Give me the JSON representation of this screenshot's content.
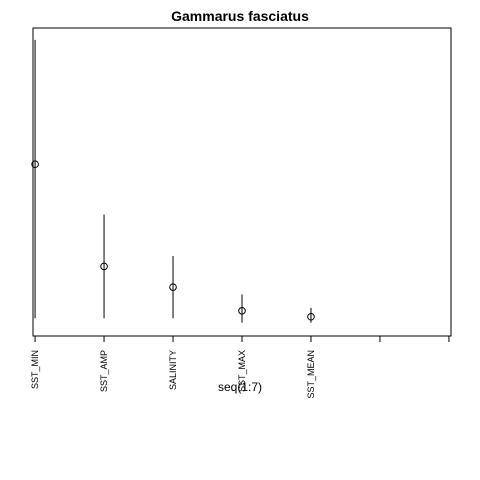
{
  "chart_data": {
    "type": "scatter",
    "title": "Gammarus fasciatus",
    "xlabel": "seq(1:7)",
    "ylabel": "",
    "x_positions": [
      1,
      2,
      3,
      4,
      5,
      6,
      7
    ],
    "categories": [
      "SST_MIN",
      "SST_AMP",
      "SALINITY",
      "SST_MAX",
      "SST_MEAN",
      "",
      ""
    ],
    "points": [
      {
        "x": 1,
        "y": 0.58,
        "low": 0.06,
        "high": 1.0
      },
      {
        "x": 2,
        "y": 0.235,
        "low": 0.06,
        "high": 0.41
      },
      {
        "x": 3,
        "y": 0.165,
        "low": 0.06,
        "high": 0.27
      },
      {
        "x": 4,
        "y": 0.085,
        "low": 0.045,
        "high": 0.14
      },
      {
        "x": 5,
        "y": 0.065,
        "low": 0.045,
        "high": 0.095
      }
    ],
    "xlim": [
      0.97,
      7.03
    ],
    "ylim": [
      0.0,
      1.04
    ],
    "y_axis_shown": false,
    "grid": false,
    "marker": "open-circle",
    "color": "#000000"
  }
}
